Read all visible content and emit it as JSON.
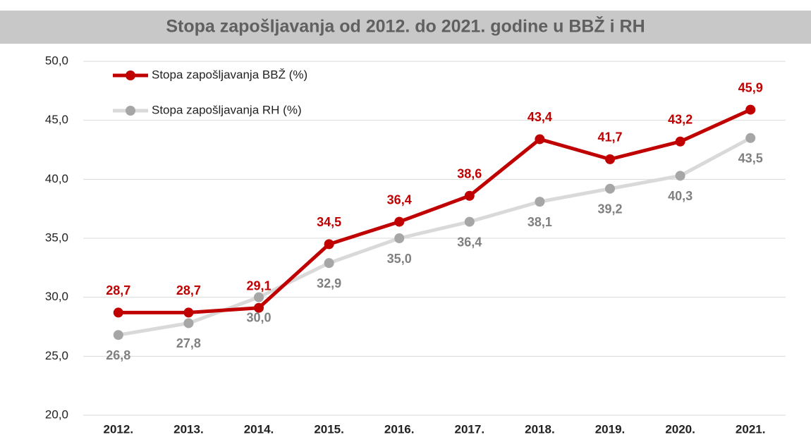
{
  "chart_data": {
    "type": "line",
    "title": "Stopa zapošljavanja od 2012. do 2021. godine u BBŽ i RH",
    "categories": [
      "2012.",
      "2013.",
      "2014.",
      "2015.",
      "2016.",
      "2017.",
      "2018.",
      "2019.",
      "2020.",
      "2021."
    ],
    "series": [
      {
        "name": "Stopa zapošljavanja BBŽ (%)",
        "color": "#c00000",
        "marker_color": "#c00000",
        "values": [
          28.7,
          28.7,
          29.1,
          34.5,
          36.4,
          38.6,
          43.4,
          41.7,
          43.2,
          45.9
        ],
        "value_labels": [
          "28,7",
          "28,7",
          "29,1",
          "34,5",
          "36,4",
          "38,6",
          "43,4",
          "41,7",
          "43,2",
          "45,9"
        ]
      },
      {
        "name": "Stopa zapošljavanja RH (%)",
        "color": "#d9d9d9",
        "marker_color": "#a6a6a6",
        "values": [
          26.8,
          27.8,
          30.0,
          32.9,
          35.0,
          36.4,
          38.1,
          39.2,
          40.3,
          43.5
        ],
        "value_labels": [
          "26,8",
          "27,8",
          "30,0",
          "32,9",
          "35,0",
          "36,4",
          "38,1",
          "39,2",
          "40,3",
          "43,5"
        ]
      }
    ],
    "ylim": [
      20,
      50
    ],
    "yticks": [
      {
        "value": 20,
        "label": "20,0"
      },
      {
        "value": 25,
        "label": "25,0"
      },
      {
        "value": 30,
        "label": "30,0"
      },
      {
        "value": 35,
        "label": "35,0"
      },
      {
        "value": 40,
        "label": "40,0"
      },
      {
        "value": 45,
        "label": "45,0"
      },
      {
        "value": 50,
        "label": "50,0"
      }
    ],
    "grid": true,
    "legend": "top-left"
  }
}
